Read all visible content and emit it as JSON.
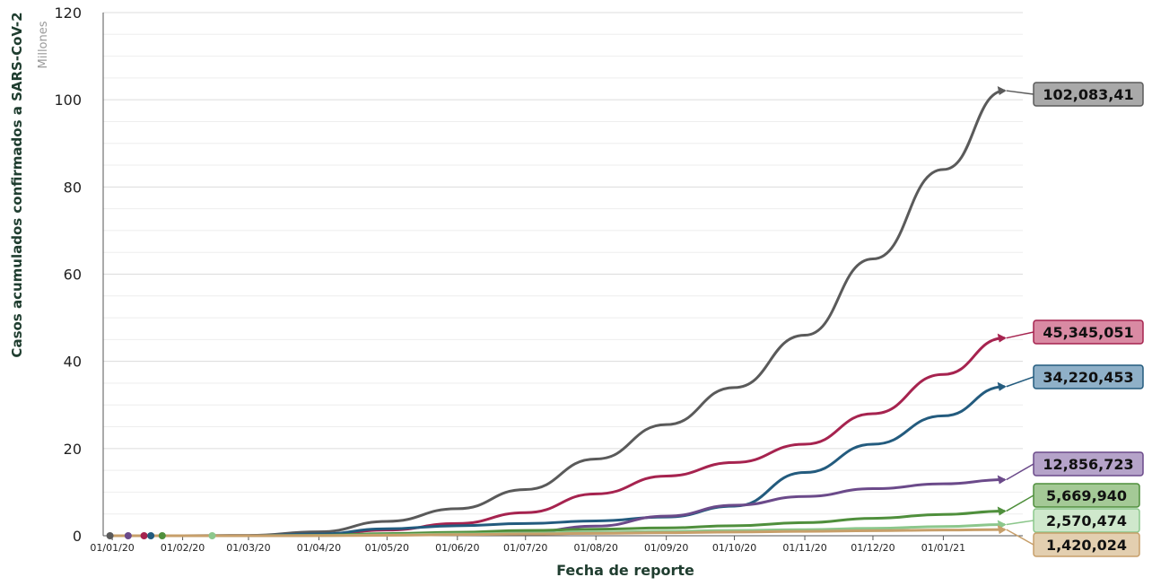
{
  "chart_data": {
    "type": "line",
    "ylabel": "Casos acumulados confirmados a SARS-CoV-2",
    "yunit": "Millones",
    "xlabel": "Fecha de reporte",
    "ylim": [
      0,
      120
    ],
    "yticks": [
      0,
      20,
      40,
      60,
      80,
      100,
      120
    ],
    "x_tick_labels": [
      "01/01/20",
      "01/02/20",
      "01/03/20",
      "01/04/20",
      "01/05/20",
      "01/06/20",
      "01/07/20",
      "01/08/20",
      "01/09/20",
      "01/10/20",
      "01/11/20",
      "01/12/20",
      "01/01/21"
    ],
    "grid": true,
    "x": [
      "01/01/20",
      "01/02/20",
      "01/03/20",
      "01/04/20",
      "01/05/20",
      "01/06/20",
      "01/07/20",
      "01/08/20",
      "01/09/20",
      "01/10/20",
      "01/11/20",
      "01/12/20",
      "01/01/21",
      "28/01/21"
    ],
    "series": [
      {
        "color": "#5a5a5a",
        "end_label": "102,083,41",
        "label_bg": "#a9a9a9",
        "values": [
          0,
          0.01,
          0.09,
          0.9,
          3.3,
          6.2,
          10.6,
          17.6,
          25.5,
          34.0,
          46.0,
          63.5,
          84.0,
          102.08
        ]
      },
      {
        "color": "#a6234f",
        "end_label": "45,345,051",
        "label_bg": "#d98aa3",
        "values": [
          0,
          0,
          0,
          0.2,
          1.3,
          2.8,
          5.3,
          9.6,
          13.7,
          16.8,
          21.0,
          28.0,
          37.0,
          45.35
        ]
      },
      {
        "color": "#235b7e",
        "end_label": "34,220,453",
        "label_bg": "#8fb0c8",
        "values": [
          0,
          0,
          0,
          0.4,
          1.6,
          2.3,
          2.8,
          3.4,
          4.3,
          6.8,
          14.5,
          21.0,
          27.5,
          34.22
        ]
      },
      {
        "color": "#6b4a8a",
        "end_label": "12,856,723",
        "label_bg": "#b5a3c9",
        "values": [
          0,
          0,
          0,
          0.1,
          0.25,
          0.4,
          0.8,
          2.2,
          4.5,
          7.0,
          9.0,
          10.8,
          11.9,
          12.86
        ]
      },
      {
        "color": "#4f8f3c",
        "end_label": "5,669,940",
        "label_bg": "#a4c996",
        "values": [
          0,
          0,
          0,
          0.1,
          0.5,
          0.8,
          1.2,
          1.5,
          1.8,
          2.3,
          3.0,
          4.0,
          4.9,
          5.67
        ]
      },
      {
        "color": "#8cc78c",
        "end_label": "2,570,474",
        "label_bg": "#cfe8cc",
        "values": [
          0,
          0,
          0,
          0.05,
          0.2,
          0.4,
          0.6,
          0.8,
          1.0,
          1.2,
          1.4,
          1.7,
          2.1,
          2.57
        ]
      },
      {
        "color": "#c79f6a",
        "end_label": "1,420,024",
        "label_bg": "#e3cfb0",
        "values": [
          0,
          0,
          0,
          0.02,
          0.1,
          0.25,
          0.4,
          0.55,
          0.7,
          0.85,
          1.0,
          1.15,
          1.3,
          1.42
        ]
      }
    ],
    "early_markers": [
      {
        "x_days": -1,
        "color": "#5a5a5a"
      },
      {
        "x_days": 7,
        "color": "#6b4a8a"
      },
      {
        "x_days": 14,
        "color": "#a6234f"
      },
      {
        "x_days": 17,
        "color": "#235b7e"
      },
      {
        "x_days": 22,
        "color": "#4f8f3c"
      },
      {
        "x_days": 44,
        "color": "#8cc78c"
      }
    ]
  }
}
